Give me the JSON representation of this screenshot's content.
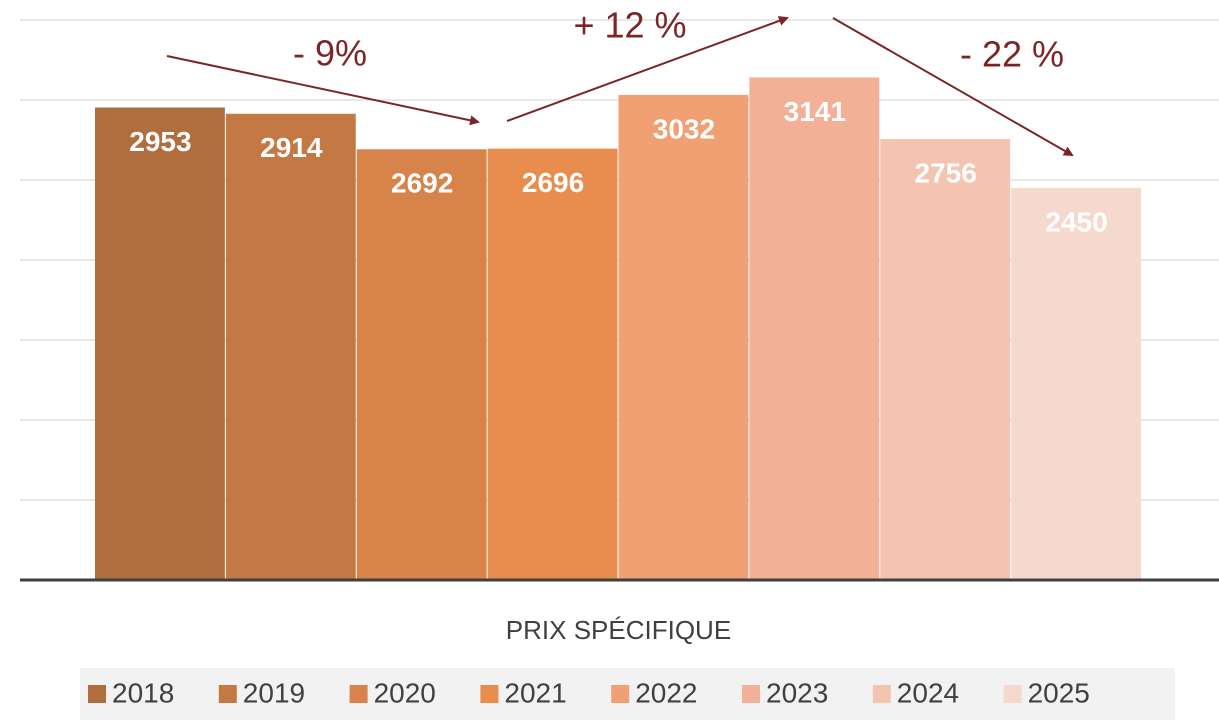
{
  "chart_data": {
    "type": "bar",
    "categories": [
      "PRIX SPÉCIFIQUE"
    ],
    "series": [
      {
        "name": "2018",
        "color": "#b06d3e",
        "values": [
          2953
        ]
      },
      {
        "name": "2019",
        "color": "#c47843",
        "values": [
          2914
        ]
      },
      {
        "name": "2020",
        "color": "#d8834a",
        "values": [
          2692
        ]
      },
      {
        "name": "2021",
        "color": "#e88d4e",
        "values": [
          2696
        ]
      },
      {
        "name": "2022",
        "color": "#f0a072",
        "values": [
          3032
        ]
      },
      {
        "name": "2023",
        "color": "#f2b097",
        "values": [
          3141
        ]
      },
      {
        "name": "2024",
        "color": "#f4c4b1",
        "values": [
          2756
        ]
      },
      {
        "name": "2025",
        "color": "#f6d9cd",
        "values": [
          2450
        ]
      }
    ],
    "annotations": [
      "- 9%",
      "+ 12 %",
      "- 22 %"
    ],
    "ylim": [
      0,
      3500
    ],
    "yticks": [
      0,
      500,
      1000,
      1500,
      2000,
      2500,
      3000,
      3500
    ],
    "grid": true,
    "legend": "bottom"
  }
}
